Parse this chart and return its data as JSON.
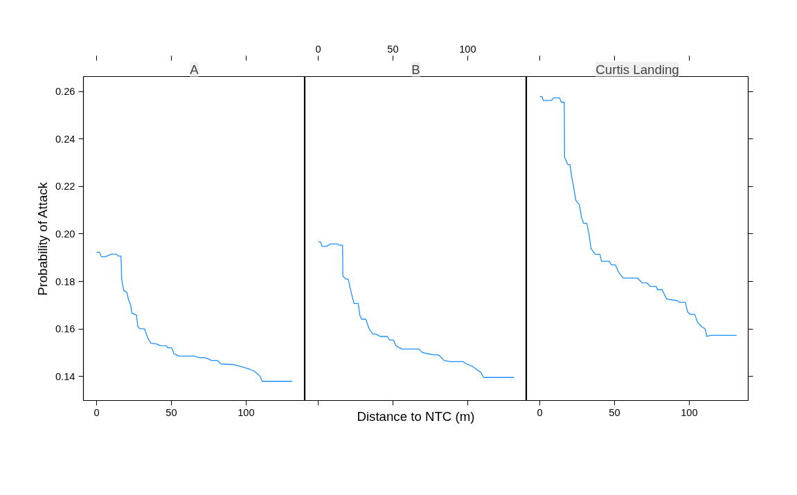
{
  "chart_data": [
    {
      "type": "line",
      "title": "A",
      "ylabel": "Probability of Attack",
      "xlim": [
        -8.8,
        139.4
      ],
      "ylim": [
        0.1298,
        0.2664
      ],
      "xticks": [
        0,
        50,
        100
      ],
      "yticks": [
        {
          "value": 0.14,
          "label": "0.14"
        },
        {
          "value": 0.16,
          "label": "0.16"
        },
        {
          "value": 0.18,
          "label": "0.18"
        },
        {
          "value": 0.2,
          "label": "0.20"
        },
        {
          "value": 0.22,
          "label": "0.22"
        },
        {
          "value": 0.24,
          "label": "0.24"
        },
        {
          "value": 0.26,
          "label": "0.26"
        }
      ],
      "grid": false,
      "series": [
        {
          "color": "#1e90ff",
          "x": [
            0,
            2,
            3.2,
            5.9,
            9.7,
            13.3,
            14.4,
            16.3,
            16.5,
            16.8,
            18.2,
            20.2,
            21.3,
            22.8,
            23.6,
            26.7,
            27.5,
            28.7,
            32.1,
            34.4,
            36.4,
            39.8,
            42.8,
            46.8,
            47.5,
            50.2,
            51.7,
            55.2,
            65.3,
            68.4,
            73,
            76.9,
            80.7,
            83.3,
            92.3,
            97.7,
            101.5,
            105.4,
            109.3,
            110.8,
            130.8
          ],
          "values": [
            0.1923,
            0.1923,
            0.1904,
            0.1904,
            0.1915,
            0.1915,
            0.1907,
            0.1907,
            0.187,
            0.1807,
            0.1761,
            0.1755,
            0.1724,
            0.17,
            0.1666,
            0.1658,
            0.1612,
            0.1601,
            0.16,
            0.1558,
            0.1539,
            0.1537,
            0.1529,
            0.1528,
            0.152,
            0.152,
            0.1495,
            0.1485,
            0.1485,
            0.1479,
            0.1478,
            0.1467,
            0.1467,
            0.1452,
            0.1449,
            0.1439,
            0.1432,
            0.1422,
            0.1401,
            0.1379,
            0.1379
          ]
        }
      ]
    },
    {
      "type": "line",
      "title": "B",
      "xlabel": "Distance to NTC (m)",
      "xlim": [
        -8.8,
        139.4
      ],
      "ylim": [
        0.1298,
        0.2664
      ],
      "x2lim": [
        -8.8,
        139.4
      ],
      "x2ticks": [
        0,
        50,
        100
      ],
      "grid": false,
      "series": [
        {
          "color": "#1e90ff",
          "x": [
            0,
            1.5,
            2.6,
            5.4,
            8.5,
            13.2,
            14,
            16.3,
            16.4,
            16.5,
            18.6,
            20.1,
            21.7,
            23.3,
            24,
            26.8,
            27.9,
            29.2,
            31.8,
            34.1,
            36.7,
            38.7,
            41.5,
            46.2,
            47.8,
            50.4,
            52,
            55.8,
            67.4,
            69.8,
            73.6,
            77.5,
            80.6,
            84.2,
            88.4,
            96.9,
            99.2,
            103.1,
            108.5,
            110.8,
            131
          ],
          "values": [
            0.1967,
            0.1967,
            0.1948,
            0.1948,
            0.1958,
            0.1958,
            0.1953,
            0.1953,
            0.189,
            0.1822,
            0.181,
            0.181,
            0.1763,
            0.1724,
            0.1707,
            0.1707,
            0.1656,
            0.1641,
            0.1641,
            0.16,
            0.1578,
            0.1578,
            0.1568,
            0.1568,
            0.1553,
            0.1553,
            0.1529,
            0.1515,
            0.1515,
            0.15,
            0.1495,
            0.149,
            0.149,
            0.1467,
            0.1462,
            0.1462,
            0.1452,
            0.1442,
            0.1418,
            0.1395,
            0.1395
          ]
        }
      ]
    },
    {
      "type": "line",
      "title": "Curtis Landing",
      "xlim": [
        -8.8,
        139.4
      ],
      "ylim": [
        0.1298,
        0.2664
      ],
      "tick_labels": "x",
      "xticks": [
        0,
        50,
        100
      ],
      "grid": false,
      "series": [
        {
          "color": "#1e90ff",
          "x": [
            0,
            1.6,
            2.3,
            7.8,
            9.3,
            13.2,
            14.3,
            16.4,
            16.5,
            16.6,
            18.7,
            20.2,
            21.5,
            22.6,
            24.1,
            26.5,
            28,
            29.3,
            31.5,
            33,
            34.3,
            37.1,
            40.2,
            41.3,
            46.4,
            48,
            50.6,
            52.7,
            55.8,
            65.4,
            68.5,
            71.6,
            74,
            77.9,
            78.7,
            81.8,
            84.9,
            91.9,
            93.5,
            97.3,
            98.9,
            100.9,
            103.6,
            105.6,
            108.3,
            110.6,
            111.8,
            114.5,
            131.6
          ],
          "values": [
            0.2579,
            0.2579,
            0.2563,
            0.2563,
            0.2574,
            0.2574,
            0.2556,
            0.2556,
            0.2444,
            0.2323,
            0.2293,
            0.2293,
            0.2235,
            0.2201,
            0.2142,
            0.2123,
            0.2069,
            0.2045,
            0.2045,
            0.1996,
            0.1938,
            0.1914,
            0.1914,
            0.1885,
            0.1885,
            0.187,
            0.187,
            0.1839,
            0.1814,
            0.1814,
            0.1794,
            0.1794,
            0.1779,
            0.1779,
            0.1765,
            0.1765,
            0.1726,
            0.1719,
            0.1712,
            0.1712,
            0.1671,
            0.1661,
            0.1661,
            0.1627,
            0.1609,
            0.16,
            0.1568,
            0.1573,
            0.1573
          ]
        }
      ]
    }
  ]
}
